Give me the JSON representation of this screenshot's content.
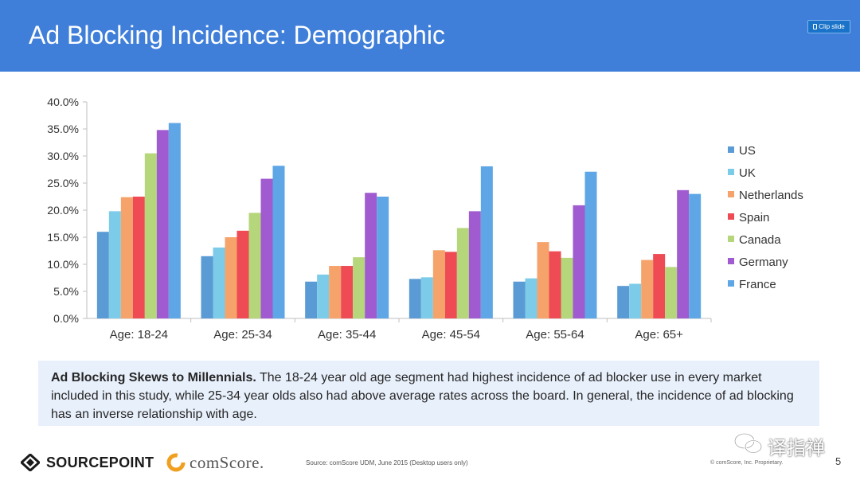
{
  "slide": {
    "title": "Ad Blocking Incidence: Demographic",
    "clip_button_label": "Clip slide",
    "page_number": "5"
  },
  "summary": {
    "bold": "Ad Blocking Skews to Millennials.",
    "text": " The 18-24 year old age segment had highest incidence of ad blocker use in every market included in this study, while 25-34 year olds also had above average rates across the board. In general, the incidence of ad blocking has an inverse relationship with age."
  },
  "footer": {
    "sourcepoint_logo": "SOURCEPOINT",
    "comscore_logo": "comScore.",
    "source": "Source: comScore UDM, June 2015 (Desktop users only)",
    "copyright": "© comScore, Inc. Proprietary."
  },
  "watermark": {
    "text": "译指禅",
    "icon": "wechat-icon"
  },
  "colors": {
    "header": "#3f7fd9",
    "summary_bg": "#e8f0fb"
  },
  "chart_data": {
    "type": "bar",
    "categories": [
      "Age: 18-24",
      "Age: 25-34",
      "Age: 35-44",
      "Age: 45-54",
      "Age: 55-64",
      "Age: 65+"
    ],
    "y_ticks": [
      "0.0%",
      "5.0%",
      "10.0%",
      "15.0%",
      "20.0%",
      "25.0%",
      "30.0%",
      "35.0%",
      "40.0%"
    ],
    "ylim": [
      0,
      40
    ],
    "grid": false,
    "legend_position": "right",
    "series": [
      {
        "name": "US",
        "color": "#5b9bd5",
        "values": [
          16.0,
          11.5,
          6.8,
          7.3,
          6.8,
          6.0
        ]
      },
      {
        "name": "UK",
        "color": "#7ccbe8",
        "values": [
          19.8,
          13.1,
          8.1,
          7.6,
          7.4,
          6.4
        ]
      },
      {
        "name": "Netherlands",
        "color": "#f5a36b",
        "values": [
          22.4,
          15.0,
          9.7,
          12.6,
          14.1,
          10.8
        ]
      },
      {
        "name": "Spain",
        "color": "#ee4b55",
        "values": [
          22.5,
          16.2,
          9.7,
          12.3,
          12.4,
          11.9
        ]
      },
      {
        "name": "Canada",
        "color": "#b5d67a",
        "values": [
          30.5,
          19.5,
          11.3,
          16.7,
          11.2,
          9.5
        ]
      },
      {
        "name": "Germany",
        "color": "#a05bd0",
        "values": [
          34.8,
          25.8,
          23.2,
          19.8,
          20.9,
          23.7
        ]
      },
      {
        "name": "France",
        "color": "#5ea6e6",
        "values": [
          36.1,
          28.2,
          22.5,
          28.1,
          27.1,
          23.0
        ]
      }
    ]
  }
}
